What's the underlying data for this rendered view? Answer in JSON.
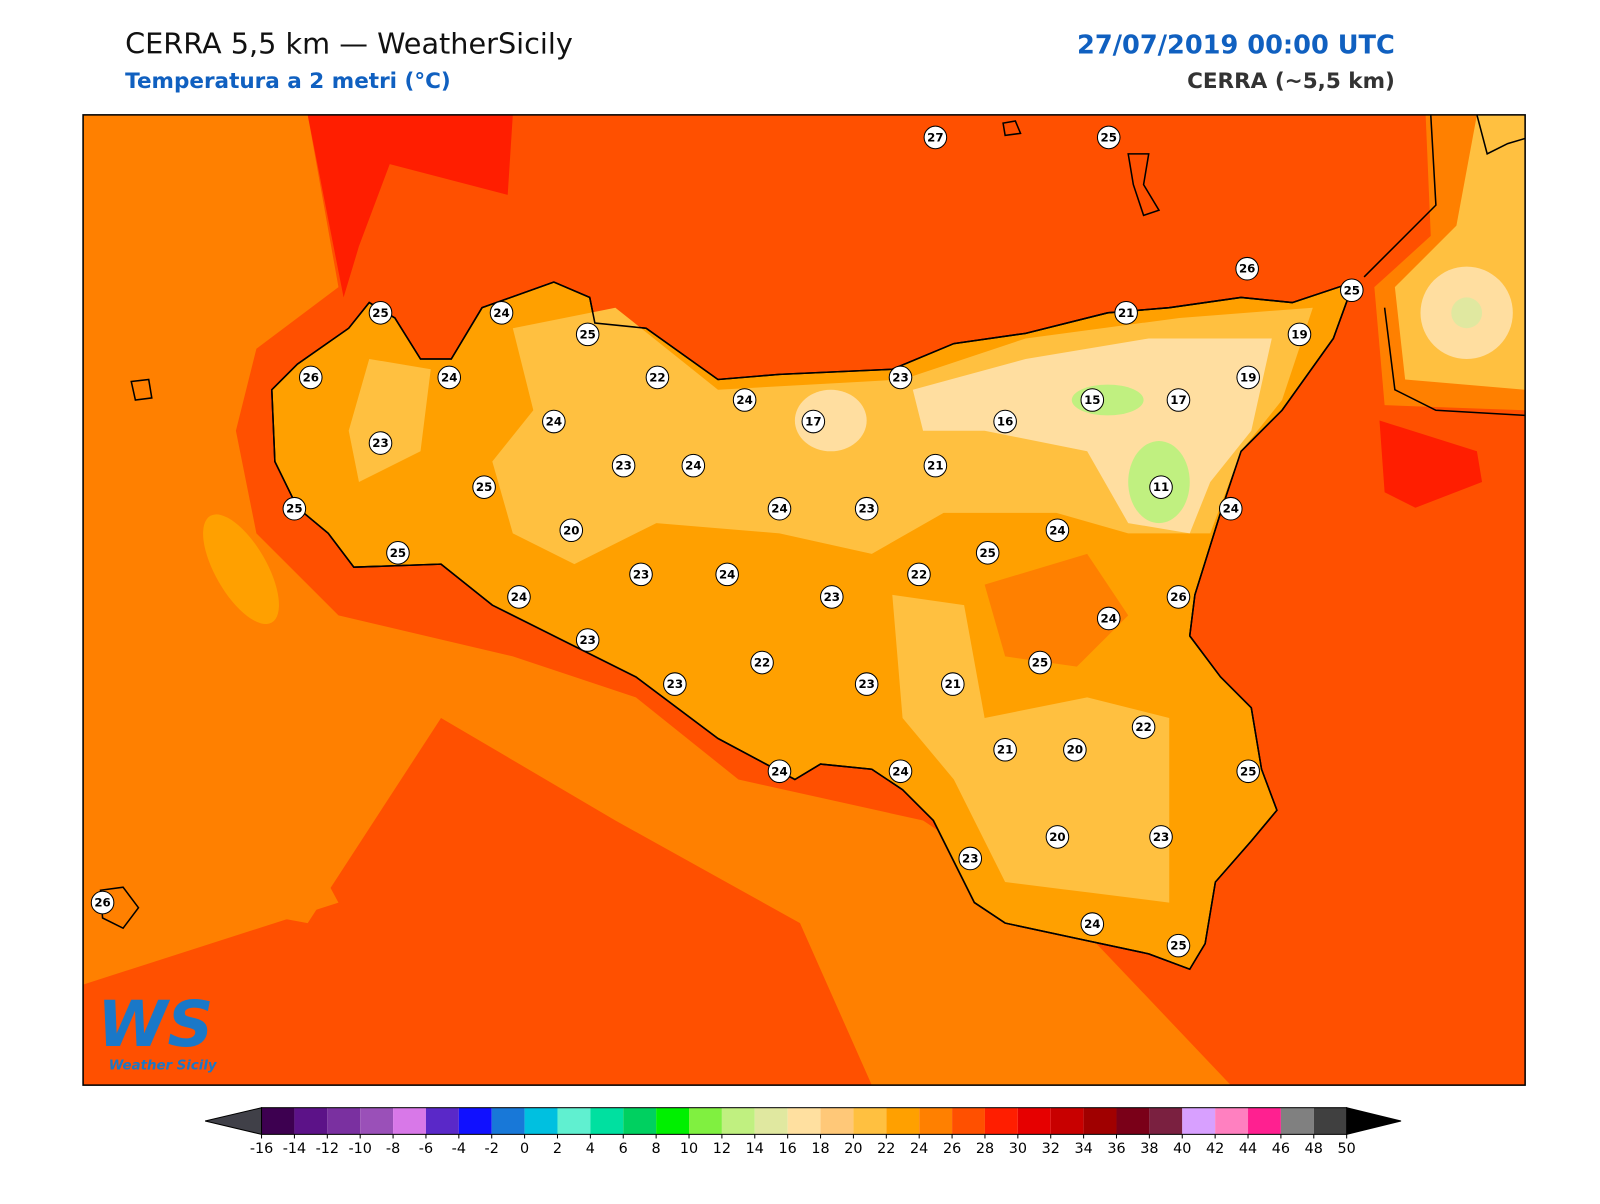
{
  "header": {
    "title": "CERRA 5,5 km — WeatherSicily",
    "subtitle": "Temperatura a 2 metri (°C)",
    "datetime": "27/07/2019 00:00 UTC",
    "model": "CERRA (~5,5 km)"
  },
  "stations": [
    27,
    25,
    26,
    25,
    25,
    24,
    25,
    21,
    19,
    26,
    24,
    22,
    24,
    23,
    19,
    15,
    17,
    24,
    17,
    16,
    23,
    23,
    24,
    21,
    25,
    11,
    25,
    24,
    23,
    24,
    20,
    24,
    25,
    25,
    23,
    24,
    22,
    24,
    23,
    26,
    24,
    23,
    25,
    22,
    23,
    23,
    21,
    22,
    21,
    20,
    24,
    24,
    25,
    20,
    23,
    23,
    26,
    24,
    25
  ],
  "colorbar": {
    "ticks": [
      -16,
      -14,
      -12,
      -10,
      -8,
      -6,
      -4,
      -2,
      0,
      2,
      4,
      6,
      8,
      10,
      12,
      14,
      16,
      18,
      20,
      22,
      24,
      26,
      28,
      30,
      32,
      34,
      36,
      38,
      40,
      42,
      44,
      46,
      48,
      50
    ],
    "colors": [
      "#3d0050",
      "#5c1288",
      "#7a30a0",
      "#9a50b8",
      "#d878e8",
      "#5a28c8",
      "#1010ff",
      "#1878d8",
      "#00c0e0",
      "#60f0d0",
      "#00e0a0",
      "#00d060",
      "#00f000",
      "#80f040",
      "#c0f080",
      "#e0e8a0",
      "#ffe0a0",
      "#ffc878",
      "#ffc040",
      "#ffa000",
      "#ff8000",
      "#ff5000",
      "#ff1e00",
      "#e60000",
      "#c80000",
      "#a00000",
      "#7a0018",
      "#7a2040",
      "#d8a0ff",
      "#ff80c0",
      "#ff2090",
      "#808080",
      "#404040"
    ],
    "under_color": "#404048",
    "over_color": "#000000"
  },
  "logo": {
    "mark": "WS",
    "text": "Weather Sicily"
  }
}
